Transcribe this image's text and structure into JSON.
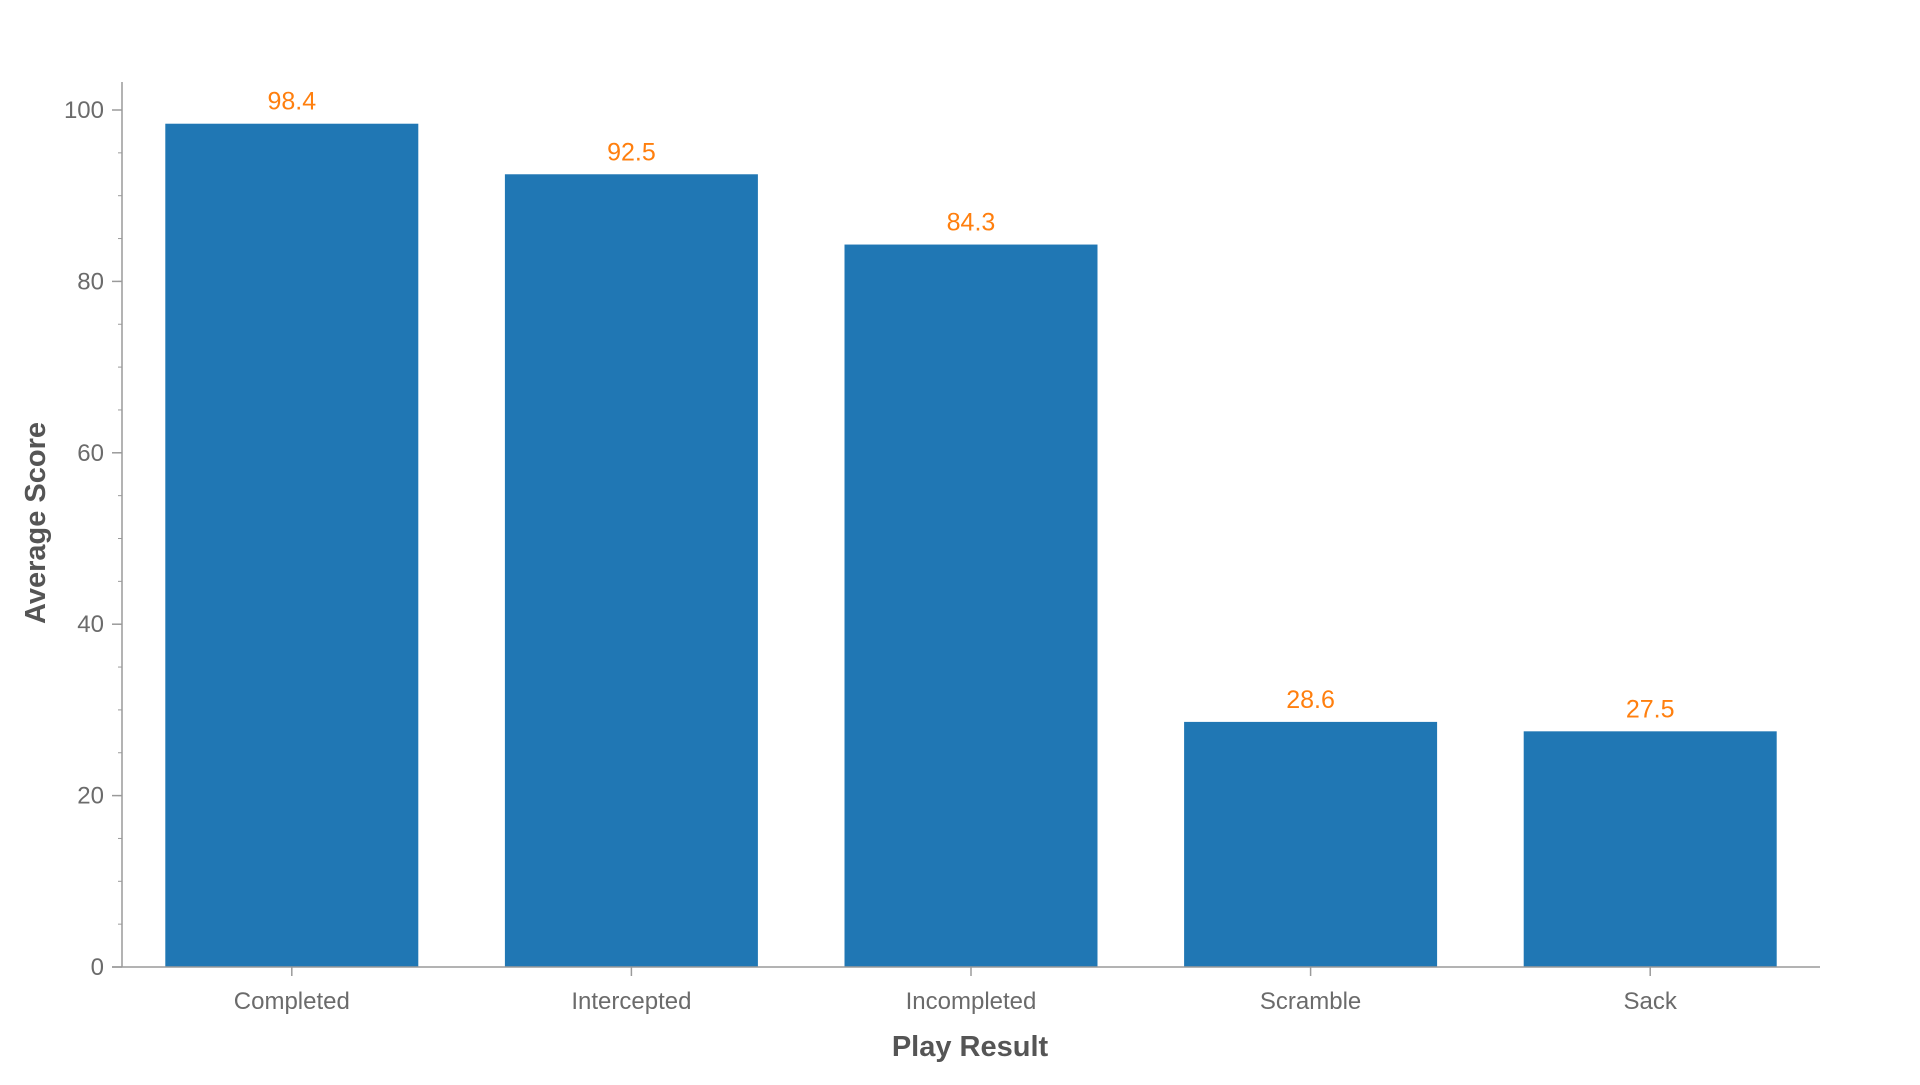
{
  "chart_data": {
    "type": "bar",
    "categories": [
      "Completed",
      "Intercepted",
      "Incompleted",
      "Scramble",
      "Sack"
    ],
    "values": [
      98.4,
      92.5,
      84.3,
      28.6,
      27.5
    ],
    "data_labels": [
      "98.4",
      "92.5",
      "84.3",
      "28.6",
      "27.5"
    ],
    "xlabel": "Play Result",
    "ylabel": "Average Score",
    "ylim": [
      0,
      100
    ],
    "yticks": [
      0,
      20,
      40,
      60,
      80,
      100
    ],
    "ytick_labels": [
      "0",
      "20",
      "40",
      "60",
      "80",
      "100"
    ],
    "grid": false,
    "legend": "none"
  },
  "colors": {
    "bar": "#2077b4",
    "data_label": "#ff7f0e",
    "axis": "#9a9a9a"
  }
}
